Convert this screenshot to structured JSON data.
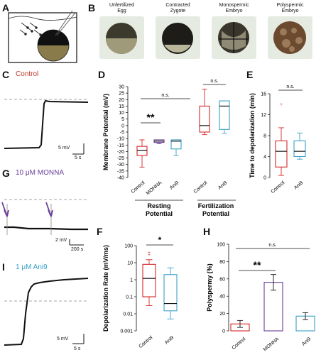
{
  "panels": {
    "A": "A",
    "B": "B",
    "C": "C",
    "D": "D",
    "E": "E",
    "F": "F",
    "G": "G",
    "H": "H",
    "I": "I"
  },
  "panel_b": {
    "labels": [
      [
        "Unfertilized",
        "Egg"
      ],
      [
        "Contracted",
        "Zygote"
      ],
      [
        "Monospermic",
        "Embryo"
      ],
      [
        "Polyspermic",
        "Embryo"
      ]
    ]
  },
  "traces": {
    "control": {
      "label": "Control",
      "color": "#c0392b",
      "scale_y": "5 mV",
      "scale_x": "5 s"
    },
    "monna": {
      "label": "10 μM MONNA",
      "color": "#6a3d9a",
      "scale_y": "2 mV",
      "scale_x": "200 s"
    },
    "ani9": {
      "label": "1 μM Ani9",
      "color": "#3aa0c8",
      "scale_y": "5 mV",
      "scale_x": "5 s"
    }
  },
  "chart_data": [
    {
      "panel": "D",
      "type": "box",
      "ylabel": "Membrane Potential (mV)",
      "ylim": [
        -40,
        30
      ],
      "yticks": [
        -40,
        -35,
        -30,
        -25,
        -20,
        -15,
        -10,
        -5,
        0,
        5,
        10,
        15,
        20,
        25,
        30
      ],
      "categories": [
        "Control",
        "MONNA",
        "Ani9",
        "Control",
        "Ani9"
      ],
      "groups": [
        {
          "name": "Resting Potential",
          "categories": [
            "Control",
            "MONNA",
            "Ani9"
          ]
        },
        {
          "name": "Fertilization Potential",
          "categories": [
            "Control",
            "Ani9"
          ]
        }
      ],
      "boxes": [
        {
          "category": "Control",
          "color": "#d62728",
          "min": -32,
          "q1": -23,
          "median": -19,
          "q3": -16,
          "max": -11
        },
        {
          "category": "MONNA",
          "color": "#6a3d9a",
          "min": -14,
          "q1": -13,
          "median": -12,
          "q3": -11,
          "max": -11
        },
        {
          "category": "Ani9",
          "color": "#3aa0c8",
          "min": -23,
          "q1": -18,
          "median": -12,
          "q3": -11,
          "max": -11
        },
        {
          "category": "Control",
          "color": "#d62728",
          "min": -7,
          "q1": -5,
          "median": 0,
          "q3": 15,
          "max": 28
        },
        {
          "category": "Ani9",
          "color": "#3aa0c8",
          "min": -6,
          "q1": -3,
          "median": 15,
          "q3": 19,
          "max": 19
        }
      ],
      "annotations": [
        "n.s.",
        "**",
        "n.s."
      ]
    },
    {
      "panel": "E",
      "type": "box",
      "ylabel": "Time to depolarization (min)",
      "ylim": [
        0,
        16
      ],
      "yticks": [
        0,
        4,
        8,
        12,
        16
      ],
      "categories": [
        "Control",
        "Ani9"
      ],
      "boxes": [
        {
          "category": "Control",
          "color": "#d62728",
          "min": 0.4,
          "q1": 2,
          "median": 5,
          "q3": 7,
          "max": 9.5,
          "outlier": 14
        },
        {
          "category": "Ani9",
          "color": "#3aa0c8",
          "min": 3.5,
          "q1": 4,
          "median": 5,
          "q3": 7,
          "max": 8.5
        }
      ],
      "annotations": [
        "n.s."
      ]
    },
    {
      "panel": "F",
      "type": "box",
      "ylabel": "Depolarization Rate (mV/ms)",
      "scale": "log",
      "ylim": [
        0.001,
        100
      ],
      "yticks": [
        "0.001",
        "0.01",
        "0.1",
        "1",
        "10",
        "100"
      ],
      "categories": [
        "Control",
        "Ani9"
      ],
      "boxes": [
        {
          "category": "Control",
          "color": "#d62728",
          "min": 0.03,
          "q1": 0.1,
          "median": 1.2,
          "q3": 8,
          "max": 15,
          "outliers": [
            30,
            40
          ]
        },
        {
          "category": "Ani9",
          "color": "#3aa0c8",
          "min": 0.005,
          "q1": 0.015,
          "median": 0.04,
          "q3": 2,
          "max": 5
        }
      ],
      "annotations": [
        "*"
      ]
    },
    {
      "panel": "H",
      "type": "bar",
      "ylabel": "Polyspermy (%)",
      "ylim": [
        0,
        100
      ],
      "yticks": [
        0,
        20,
        40,
        60,
        80,
        100
      ],
      "categories": [
        "Control",
        "MONNA",
        "Ani9"
      ],
      "values": [
        8,
        56,
        17
      ],
      "errors": [
        4,
        9,
        4
      ],
      "colors": [
        "#d62728",
        "#6a3d9a",
        "#3aa0c8"
      ],
      "annotations": [
        "n.s.",
        "**"
      ]
    }
  ]
}
